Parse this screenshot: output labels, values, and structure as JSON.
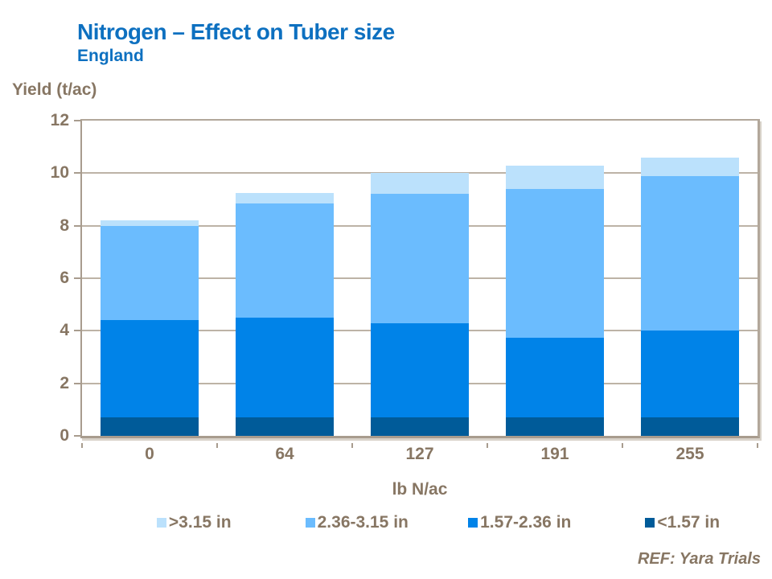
{
  "slide": {
    "title": "Nitrogen – Effect on Tuber size",
    "subtitle": "England",
    "reference": "REF: Yara Trials"
  },
  "chart_data": {
    "type": "bar",
    "stacked": true,
    "title": "Nitrogen – Effect on Tuber size",
    "subtitle": "England",
    "ylabel": "Yield (t/ac)",
    "xlabel": "lb N/ac",
    "categories": [
      "0",
      "64",
      "127",
      "191",
      "255"
    ],
    "ylim": [
      0,
      12
    ],
    "ytick_step": 2,
    "grid": true,
    "legend_position": "bottom",
    "bar_width_pct": 73,
    "series": [
      {
        "name": "<1.57 in",
        "color": "#005b99",
        "values": [
          0.7,
          0.7,
          0.7,
          0.7,
          0.7
        ]
      },
      {
        "name": "1.57-2.36 in",
        "color": "#0083e8",
        "values": [
          3.7,
          3.8,
          3.6,
          3.05,
          3.3
        ]
      },
      {
        "name": "2.36-3.15 in",
        "color": "#6bbcfe",
        "values": [
          3.6,
          4.35,
          4.9,
          5.65,
          5.9
        ]
      },
      {
        "name": ">3.15 in",
        "color": "#bbe1fc",
        "values": [
          0.2,
          0.4,
          0.8,
          0.9,
          0.7
        ]
      }
    ],
    "legend_order_note": "legend displays series top-of-stack first"
  },
  "colors": {
    "title_blue": "#0d70c0",
    "label_brown": "#877663",
    "axis_line": "#a89c8e",
    "frame_line": "#b2a79a",
    "gridline": "#bdb3a6"
  }
}
